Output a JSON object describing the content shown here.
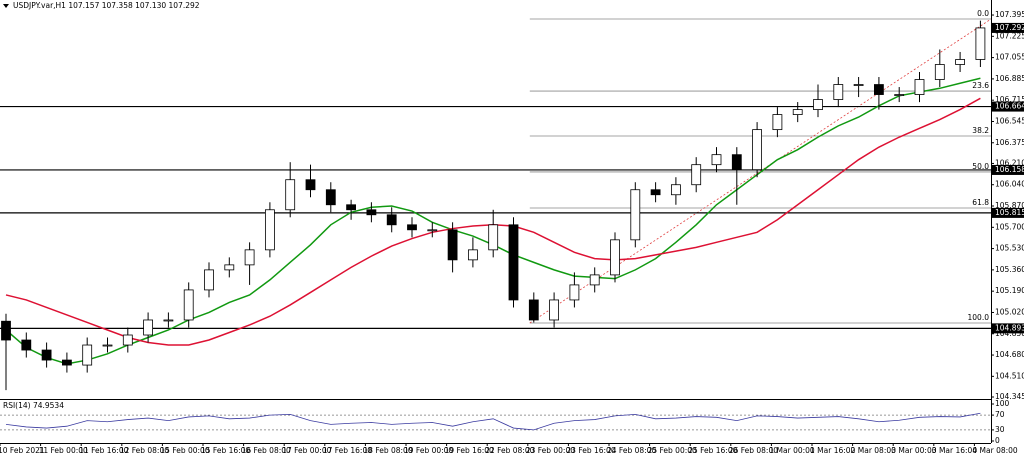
{
  "chart_data": {
    "type": "candlestick",
    "header": "USDJPY.var,H1  107.157 107.358 107.130 107.292",
    "categories": [
      "10 Feb 2021",
      null,
      "11 Feb 00:00",
      null,
      "11 Feb 16:00",
      null,
      "12 Feb 08:00",
      null,
      "15 Feb 00:00",
      null,
      "15 Feb 16:00",
      null,
      "16 Feb 08:00",
      null,
      "17 Feb 00:00",
      null,
      "17 Feb 16:00",
      null,
      "18 Feb 08:00",
      null,
      "19 Feb 00:00",
      null,
      "19 Feb 16:00",
      null,
      "22 Feb 08:00",
      null,
      "23 Feb 00:00",
      null,
      "23 Feb 16:00",
      null,
      "24 Feb 08:00",
      null,
      "25 Feb 00:00",
      null,
      "25 Feb 16:00",
      null,
      "26 Feb 08:00",
      null,
      "1 Mar 00:00",
      null,
      "1 Mar 16:00",
      null,
      "2 Mar 08:00",
      null,
      "3 Mar 00:00",
      null,
      "3 Mar 16:00",
      null,
      "4 Mar 08:00"
    ],
    "open": [
      104.95,
      104.8,
      104.72,
      104.64,
      104.6,
      104.76,
      104.76,
      104.84,
      104.96,
      104.96,
      105.2,
      105.36,
      105.4,
      105.52,
      105.84,
      106.08,
      106.0,
      105.88,
      105.84,
      105.8,
      105.72,
      105.68,
      105.68,
      105.44,
      105.52,
      105.72,
      105.12,
      104.96,
      105.12,
      105.24,
      105.32,
      105.6,
      106.0,
      105.96,
      106.04,
      106.2,
      106.28,
      106.16,
      106.48,
      106.6,
      106.64,
      106.72,
      106.84,
      106.84,
      106.76,
      106.76,
      106.88,
      107.0,
      107.04
    ],
    "high": [
      105.01,
      104.86,
      104.78,
      104.7,
      104.82,
      104.82,
      104.9,
      105.02,
      105.02,
      105.26,
      105.42,
      105.46,
      105.58,
      105.9,
      106.22,
      106.2,
      106.06,
      105.92,
      105.9,
      105.86,
      105.78,
      105.74,
      105.74,
      105.62,
      105.84,
      105.78,
      105.18,
      105.18,
      105.34,
      105.38,
      105.66,
      106.06,
      106.06,
      106.1,
      106.26,
      106.34,
      106.34,
      106.54,
      106.66,
      106.7,
      106.84,
      106.9,
      106.9,
      106.9,
      106.82,
      106.94,
      107.12,
      107.1,
      107.35
    ],
    "low": [
      104.4,
      104.66,
      104.58,
      104.54,
      104.54,
      104.7,
      104.7,
      104.78,
      104.9,
      104.9,
      105.14,
      105.3,
      105.24,
      105.46,
      105.78,
      105.94,
      105.82,
      105.76,
      105.74,
      105.66,
      105.62,
      105.62,
      105.34,
      105.38,
      105.46,
      105.06,
      104.94,
      104.9,
      105.06,
      105.18,
      105.26,
      105.54,
      105.9,
      105.88,
      105.98,
      106.14,
      105.88,
      106.1,
      106.42,
      106.54,
      106.58,
      106.66,
      106.74,
      106.64,
      106.7,
      106.7,
      106.82,
      106.94,
      106.98
    ],
    "close": [
      104.8,
      104.72,
      104.64,
      104.6,
      104.76,
      104.76,
      104.84,
      104.96,
      104.96,
      105.2,
      105.36,
      105.4,
      105.52,
      105.84,
      106.08,
      106.0,
      105.88,
      105.84,
      105.8,
      105.72,
      105.68,
      105.68,
      105.44,
      105.52,
      105.72,
      105.12,
      104.96,
      105.12,
      105.24,
      105.32,
      105.6,
      106.0,
      105.96,
      106.04,
      106.2,
      106.28,
      106.16,
      106.48,
      106.6,
      106.64,
      106.72,
      106.84,
      106.84,
      106.76,
      106.76,
      106.88,
      107.0,
      107.04,
      107.292
    ],
    "up_color": "#ffffff",
    "down_color": "#000000",
    "series": [
      {
        "color": "#119911",
        "values": [
          104.88,
          104.74,
          104.66,
          104.61,
          104.64,
          104.69,
          104.76,
          104.82,
          104.88,
          104.96,
          105.02,
          105.1,
          105.16,
          105.28,
          105.42,
          105.56,
          105.72,
          105.82,
          105.86,
          105.87,
          105.83,
          105.74,
          105.68,
          105.63,
          105.56,
          105.48,
          105.42,
          105.36,
          105.31,
          105.3,
          105.29,
          105.36,
          105.45,
          105.58,
          105.72,
          105.88,
          106.0,
          106.12,
          106.24,
          106.32,
          106.42,
          106.51,
          106.58,
          106.67,
          106.75,
          106.78,
          106.81,
          106.85,
          106.89
        ]
      },
      {
        "color": "#dd1133",
        "values": [
          105.16,
          105.12,
          105.06,
          105.0,
          104.94,
          104.88,
          104.82,
          104.78,
          104.76,
          104.76,
          104.8,
          104.86,
          104.92,
          104.99,
          105.08,
          105.18,
          105.28,
          105.38,
          105.47,
          105.55,
          105.61,
          105.66,
          105.69,
          105.71,
          105.72,
          105.71,
          105.66,
          105.58,
          105.5,
          105.45,
          105.44,
          105.45,
          105.48,
          105.51,
          105.54,
          105.58,
          105.62,
          105.66,
          105.76,
          105.88,
          106.0,
          106.12,
          106.24,
          106.34,
          106.42,
          106.49,
          106.56,
          106.64,
          106.73
        ]
      }
    ],
    "ylim": [
      104.337,
      107.515
    ],
    "yticks": [
      107.395,
      107.225,
      107.055,
      106.885,
      106.715,
      106.545,
      106.375,
      {
        "value": 106.21,
        "label": "106.210"
      },
      {
        "value": 106.04,
        "label": "106.040"
      },
      {
        "value": 105.87,
        "label": "105.870"
      },
      {
        "value": 105.7,
        "label": "105.700"
      },
      {
        "value": 105.53,
        "label": "105.530"
      },
      {
        "value": 105.36,
        "label": "105.360"
      },
      {
        "value": 105.19,
        "label": "105.190"
      },
      {
        "value": 105.02,
        "label": "105.020"
      },
      {
        "value": 104.85,
        "label": "104.850"
      },
      {
        "value": 104.68,
        "label": "104.680"
      },
      {
        "value": 104.51,
        "label": "104.510"
      },
      104.345
    ],
    "levels": [
      106.664,
      106.158,
      105.815,
      104.893
    ],
    "last_price": 107.292,
    "fib_color": "#e04040",
    "fib_levels": [
      {
        "label": "0.0",
        "price": 107.363
      },
      {
        "label": "23.6",
        "price": 106.788
      },
      {
        "label": "38.2",
        "price": 106.429
      },
      {
        "label": "50.0",
        "price": 106.142
      },
      {
        "label": "61.8",
        "price": 105.854
      },
      {
        "label": "100.0",
        "price": 104.936
      }
    ],
    "rsi": {
      "title": "RSI(14) 74.9534",
      "color": "#3a3aa0",
      "values": [
        45,
        38,
        35,
        40,
        55,
        52,
        58,
        62,
        55,
        65,
        68,
        60,
        62,
        70,
        72,
        55,
        45,
        48,
        50,
        45,
        48,
        50,
        40,
        52,
        60,
        35,
        30,
        48,
        55,
        58,
        68,
        72,
        60,
        62,
        66,
        64,
        55,
        68,
        66,
        62,
        64,
        66,
        60,
        52,
        56,
        64,
        66,
        65,
        74.9534
      ],
      "ylim": [
        0,
        100
      ],
      "yticks": [
        100,
        70,
        30,
        0
      ]
    }
  }
}
